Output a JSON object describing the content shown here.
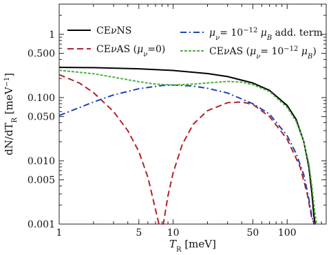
{
  "chart_data": {
    "type": "line",
    "xlabel": "T_R [meV]",
    "ylabel": "dN/dT_R [meV^-1]",
    "xscale": "log",
    "yscale": "log",
    "xlim": [
      1,
      220
    ],
    "ylim": [
      0.001,
      3
    ],
    "xticks": [
      {
        "value": 1,
        "label": "1"
      },
      {
        "value": 5,
        "label": "5"
      },
      {
        "value": 10,
        "label": "10"
      },
      {
        "value": 50,
        "label": "50"
      },
      {
        "value": 100,
        "label": "100"
      }
    ],
    "yticks": [
      {
        "value": 0.001,
        "label": "0.001"
      },
      {
        "value": 0.005,
        "label": "0.005"
      },
      {
        "value": 0.01,
        "label": "0.010"
      },
      {
        "value": 0.05,
        "label": "0.050"
      },
      {
        "value": 0.1,
        "label": "0.100"
      },
      {
        "value": 0.5,
        "label": "0.500"
      },
      {
        "value": 1,
        "label": "1"
      }
    ],
    "grid": false,
    "legend_position": "top",
    "series": [
      {
        "name": "CEνNS",
        "color": "#000000",
        "style": "solid",
        "x": [
          1,
          2,
          5,
          10,
          20,
          30,
          50,
          70,
          100,
          120,
          140,
          155,
          165,
          172,
          176
        ],
        "y": [
          0.3,
          0.297,
          0.285,
          0.268,
          0.24,
          0.215,
          0.17,
          0.13,
          0.075,
          0.045,
          0.02,
          0.008,
          0.003,
          0.0013,
          0.001
        ]
      },
      {
        "name": "CEνAS (μ_ν=0)",
        "color": "#b52025",
        "style": "dashed",
        "x": [
          1,
          1.5,
          2,
          3,
          4,
          5,
          6,
          7,
          7.5,
          8.2,
          9,
          10,
          12,
          15,
          20,
          30,
          40,
          50,
          70,
          100,
          130,
          150,
          165,
          175
        ],
        "y": [
          0.23,
          0.17,
          0.12,
          0.06,
          0.03,
          0.014,
          0.0055,
          0.0017,
          0.001,
          0.001,
          0.0028,
          0.0065,
          0.018,
          0.038,
          0.062,
          0.083,
          0.085,
          0.078,
          0.05,
          0.022,
          0.008,
          0.003,
          0.0012,
          0.001
        ]
      },
      {
        "name": "μ_ν = 10^-12 μ_B add. term",
        "color": "#1f3fb8",
        "style": "dashdot",
        "x": [
          1,
          2,
          3,
          5,
          8,
          10,
          15,
          20,
          30,
          50,
          70,
          100,
          120,
          140,
          155,
          165,
          172,
          176
        ],
        "y": [
          0.052,
          0.085,
          0.11,
          0.138,
          0.155,
          0.158,
          0.152,
          0.14,
          0.118,
          0.08,
          0.055,
          0.025,
          0.013,
          0.006,
          0.0025,
          0.0013,
          0.001,
          0.001
        ]
      },
      {
        "name": "CEνAS (μ_ν= 10^-12 μ_B)",
        "color": "#4caf3a",
        "style": "dashed-fine",
        "x": [
          1,
          2,
          3,
          5,
          7,
          10,
          15,
          20,
          30,
          40,
          50,
          70,
          100,
          120,
          140,
          155,
          165,
          172,
          178,
          182
        ],
        "y": [
          0.27,
          0.238,
          0.21,
          0.178,
          0.163,
          0.158,
          0.163,
          0.17,
          0.18,
          0.175,
          0.16,
          0.125,
          0.07,
          0.042,
          0.02,
          0.009,
          0.004,
          0.002,
          0.0012,
          0.001
        ]
      }
    ]
  },
  "legend": [
    {
      "series": 0,
      "prefix": "CE",
      "nu": "ν",
      "suffix": "NS"
    },
    {
      "series": 1,
      "prefix": "CE",
      "nu": "ν",
      "suffix": "AS (",
      "mu": "μ",
      "mu_sub": "ν",
      "tail": "=0)"
    },
    {
      "series": 2,
      "mu": "μ",
      "mu_sub": "ν",
      "eq": "= 10",
      "exp": "−12",
      "mu2": " μ",
      "mu2_sub": "B",
      "tail": " add. term"
    },
    {
      "series": 3,
      "prefix": "CE",
      "nu": "ν",
      "suffix": "AS (",
      "mu": "μ",
      "mu_sub": "ν",
      "eq": "= 10",
      "exp": "−12",
      "mu2": " μ",
      "mu2_sub": "B",
      "tail": ")"
    }
  ],
  "axis_text": {
    "x_main": "T",
    "x_sub": "R",
    "x_unit": " [meV]",
    "y_main": "dN/dT",
    "y_sub": "R",
    "y_unit": " [meV",
    "y_exp": "−1",
    "y_close": "]"
  }
}
